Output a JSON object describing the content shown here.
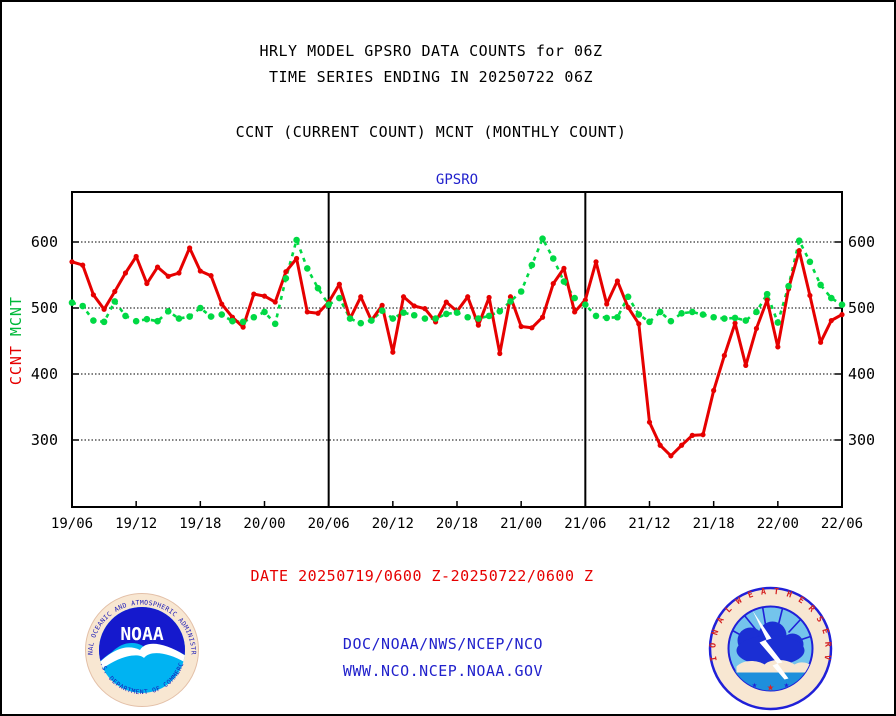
{
  "titles": {
    "line1": "HRLY MODEL GPSRO DATA COUNTS for 06Z",
    "line2": "TIME SERIES ENDING IN 20250722 06Z",
    "line3": "CCNT (CURRENT COUNT) MCNT (MONTHLY COUNT)"
  },
  "axis": {
    "ccnt_label": "CCNT",
    "mcnt_label": "MCNT"
  },
  "chart_data": {
    "type": "line",
    "title": "GPSRO",
    "x_start": "19/06",
    "x_end": "22/06",
    "x_step_hours": 1,
    "x_tick_labels": [
      "19/06",
      "19/12",
      "19/18",
      "20/00",
      "20/06",
      "20/12",
      "20/18",
      "21/00",
      "21/06",
      "21/12",
      "21/18",
      "22/00",
      "22/06"
    ],
    "y_ticks": [
      600,
      500,
      400,
      300
    ],
    "ylim": [
      200,
      675
    ],
    "grid": "dotted horizontal at y ticks",
    "section_line_indices": [
      24,
      48
    ],
    "series": [
      {
        "name": "CCNT",
        "color": "#e60000",
        "style": "solid",
        "values": [
          570,
          565,
          520,
          498,
          525,
          553,
          578,
          537,
          562,
          548,
          553,
          591,
          556,
          549,
          506,
          486,
          471,
          521,
          518,
          509,
          555,
          575,
          494,
          492,
          509,
          536,
          484,
          517,
          481,
          504,
          433,
          517,
          503,
          499,
          479,
          509,
          495,
          517,
          474,
          516,
          431,
          517,
          472,
          470,
          486,
          537,
          560,
          494,
          512,
          570,
          506,
          541,
          501,
          476,
          327,
          292,
          276,
          292,
          307,
          308,
          375,
          428,
          477,
          413,
          469,
          512,
          441,
          529,
          587,
          519,
          448,
          481,
          490
        ]
      },
      {
        "name": "MCNT",
        "color": "#00d944",
        "style": "dashed",
        "values": [
          508,
          503,
          481,
          479,
          510,
          488,
          480,
          483,
          480,
          495,
          484,
          487,
          500,
          487,
          490,
          480,
          479,
          486,
          494,
          476,
          545,
          603,
          560,
          530,
          505,
          515,
          484,
          477,
          481,
          496,
          484,
          493,
          489,
          484,
          484,
          491,
          493,
          486,
          484,
          488,
          495,
          510,
          525,
          565,
          605,
          575,
          540,
          515,
          505,
          488,
          485,
          486,
          517,
          490,
          479,
          494,
          480,
          492,
          494,
          490,
          486,
          484,
          485,
          481,
          494,
          521,
          478,
          533,
          602,
          570,
          535,
          515,
          505
        ]
      }
    ]
  },
  "footer": {
    "date_range": "DATE 20250719/0600 Z-20250722/0600 Z",
    "org": "DOC/NOAA/NWS/NCEP/NCO",
    "url": "WWW.NCO.NCEP.NOAA.GOV"
  },
  "logos": {
    "noaa": {
      "acronym": "NOAA",
      "text_top": "NATIONAL OCEANIC AND ATMOSPHERIC ADMINISTRATION",
      "text_bottom": "U.S. DEPARTMENT OF COMMERCE"
    },
    "nws": {
      "ring_text": "N A T I O N A L   W E A T H E R   S E R V I C E"
    }
  },
  "colors": {
    "ccnt": "#e60000",
    "mcnt": "#00d944",
    "blue_text": "#2121cc",
    "frame": "#000000"
  }
}
